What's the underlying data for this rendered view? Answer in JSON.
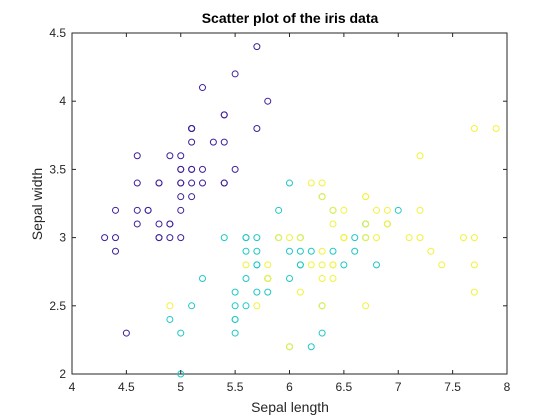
{
  "chart_data": {
    "type": "scatter",
    "title": "Scatter plot of the iris data",
    "xlabel": "Sepal length",
    "ylabel": "Sepal width",
    "xlim": [
      4,
      8
    ],
    "ylim": [
      2,
      4.5
    ],
    "xticks": [
      "4",
      "4.5",
      "5",
      "5.5",
      "6",
      "6.5",
      "7",
      "7.5",
      "8"
    ],
    "yticks": [
      "2",
      "2.5",
      "3",
      "3.5",
      "4",
      "4.5"
    ],
    "grid": false,
    "legend": false,
    "marker": "open-circle",
    "series": [
      {
        "color": "#3f1f9a",
        "points": [
          [
            5.1,
            3.5
          ],
          [
            4.9,
            3.0
          ],
          [
            4.7,
            3.2
          ],
          [
            4.6,
            3.1
          ],
          [
            5.0,
            3.6
          ],
          [
            5.4,
            3.9
          ],
          [
            4.6,
            3.4
          ],
          [
            5.0,
            3.4
          ],
          [
            4.4,
            2.9
          ],
          [
            4.9,
            3.1
          ],
          [
            5.4,
            3.7
          ],
          [
            4.8,
            3.4
          ],
          [
            4.8,
            3.0
          ],
          [
            4.3,
            3.0
          ],
          [
            5.8,
            4.0
          ],
          [
            5.7,
            4.4
          ],
          [
            5.4,
            3.9
          ],
          [
            5.1,
            3.5
          ],
          [
            5.7,
            3.8
          ],
          [
            5.1,
            3.8
          ],
          [
            5.4,
            3.4
          ],
          [
            5.1,
            3.7
          ],
          [
            4.6,
            3.6
          ],
          [
            5.1,
            3.3
          ],
          [
            4.8,
            3.4
          ],
          [
            5.0,
            3.0
          ],
          [
            5.0,
            3.4
          ],
          [
            5.2,
            3.5
          ],
          [
            5.2,
            3.4
          ],
          [
            4.7,
            3.2
          ],
          [
            4.8,
            3.1
          ],
          [
            5.4,
            3.4
          ],
          [
            5.2,
            4.1
          ],
          [
            5.5,
            4.2
          ],
          [
            4.9,
            3.1
          ],
          [
            5.0,
            3.2
          ],
          [
            5.5,
            3.5
          ],
          [
            4.9,
            3.6
          ],
          [
            4.4,
            3.0
          ],
          [
            5.1,
            3.4
          ],
          [
            5.0,
            3.5
          ],
          [
            4.5,
            2.3
          ],
          [
            4.4,
            3.2
          ],
          [
            5.0,
            3.5
          ],
          [
            5.1,
            3.8
          ],
          [
            4.8,
            3.0
          ],
          [
            5.1,
            3.8
          ],
          [
            4.6,
            3.2
          ],
          [
            5.3,
            3.7
          ],
          [
            5.0,
            3.3
          ]
        ]
      },
      {
        "color": "#1fc7c7",
        "points": [
          [
            7.0,
            3.2
          ],
          [
            6.4,
            3.2
          ],
          [
            6.9,
            3.1
          ],
          [
            5.5,
            2.3
          ],
          [
            6.5,
            2.8
          ],
          [
            5.7,
            2.8
          ],
          [
            6.3,
            3.3
          ],
          [
            4.9,
            2.4
          ],
          [
            6.6,
            2.9
          ],
          [
            5.2,
            2.7
          ],
          [
            5.0,
            2.0
          ],
          [
            5.9,
            3.0
          ],
          [
            6.0,
            2.2
          ],
          [
            6.1,
            2.9
          ],
          [
            5.6,
            2.9
          ],
          [
            6.7,
            3.1
          ],
          [
            5.6,
            3.0
          ],
          [
            5.8,
            2.7
          ],
          [
            6.2,
            2.2
          ],
          [
            5.6,
            2.5
          ],
          [
            5.9,
            3.2
          ],
          [
            6.1,
            2.8
          ],
          [
            6.3,
            2.5
          ],
          [
            6.1,
            2.8
          ],
          [
            6.4,
            2.9
          ],
          [
            6.6,
            3.0
          ],
          [
            6.8,
            2.8
          ],
          [
            6.7,
            3.0
          ],
          [
            6.0,
            2.9
          ],
          [
            5.7,
            2.6
          ],
          [
            5.5,
            2.4
          ],
          [
            5.5,
            2.4
          ],
          [
            5.8,
            2.7
          ],
          [
            6.0,
            2.7
          ],
          [
            5.4,
            3.0
          ],
          [
            6.0,
            3.4
          ],
          [
            6.7,
            3.1
          ],
          [
            6.3,
            2.3
          ],
          [
            5.6,
            3.0
          ],
          [
            5.5,
            2.5
          ],
          [
            5.5,
            2.6
          ],
          [
            6.1,
            3.0
          ],
          [
            5.8,
            2.6
          ],
          [
            5.0,
            2.3
          ],
          [
            5.6,
            2.7
          ],
          [
            5.7,
            3.0
          ],
          [
            5.7,
            2.9
          ],
          [
            6.2,
            2.9
          ],
          [
            5.1,
            2.5
          ],
          [
            5.7,
            2.8
          ]
        ]
      },
      {
        "color": "#f2f23a",
        "points": [
          [
            6.3,
            3.3
          ],
          [
            5.8,
            2.7
          ],
          [
            7.1,
            3.0
          ],
          [
            6.3,
            2.9
          ],
          [
            6.5,
            3.0
          ],
          [
            7.6,
            3.0
          ],
          [
            4.9,
            2.5
          ],
          [
            7.3,
            2.9
          ],
          [
            6.7,
            2.5
          ],
          [
            7.2,
            3.6
          ],
          [
            6.5,
            3.2
          ],
          [
            6.4,
            2.7
          ],
          [
            6.8,
            3.0
          ],
          [
            5.7,
            2.5
          ],
          [
            5.8,
            2.8
          ],
          [
            6.4,
            3.2
          ],
          [
            6.5,
            3.0
          ],
          [
            7.7,
            3.8
          ],
          [
            7.7,
            2.6
          ],
          [
            6.0,
            2.2
          ],
          [
            6.9,
            3.2
          ],
          [
            5.6,
            2.8
          ],
          [
            7.7,
            2.8
          ],
          [
            6.3,
            2.7
          ],
          [
            6.7,
            3.3
          ],
          [
            7.2,
            3.2
          ],
          [
            6.2,
            2.8
          ],
          [
            6.1,
            3.0
          ],
          [
            6.4,
            2.8
          ],
          [
            7.2,
            3.0
          ],
          [
            7.4,
            2.8
          ],
          [
            7.9,
            3.8
          ],
          [
            6.4,
            2.8
          ],
          [
            6.3,
            2.8
          ],
          [
            6.1,
            2.6
          ],
          [
            7.7,
            3.0
          ],
          [
            6.3,
            3.4
          ],
          [
            6.4,
            3.1
          ],
          [
            6.0,
            3.0
          ],
          [
            6.9,
            3.1
          ],
          [
            6.7,
            3.1
          ],
          [
            6.9,
            3.1
          ],
          [
            5.8,
            2.7
          ],
          [
            6.8,
            3.2
          ],
          [
            6.7,
            3.3
          ],
          [
            6.7,
            3.0
          ],
          [
            6.3,
            2.5
          ],
          [
            6.5,
            3.0
          ],
          [
            6.2,
            3.4
          ],
          [
            5.9,
            3.0
          ]
        ]
      }
    ]
  }
}
